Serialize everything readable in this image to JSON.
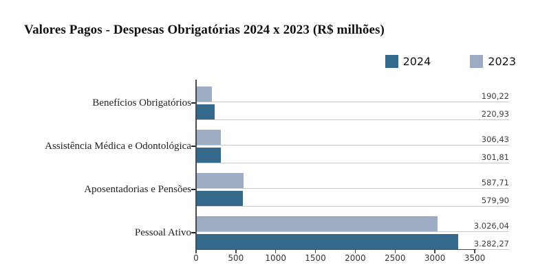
{
  "chart_data": {
    "type": "bar",
    "orientation": "horizontal",
    "title": "Valores Pagos - Despesas Obrigatórias 2024 x 2023 (R$ milhões)",
    "categories": [
      "Benefícios Obrigatórios",
      "Assistência Médica e Odontológica",
      "Aposentadorias e Pensões",
      "Pessoal Ativo"
    ],
    "series": [
      {
        "name": "2024",
        "color": "#34698c",
        "values": [
          220.93,
          301.81,
          579.9,
          3282.27
        ],
        "value_labels": [
          "220,93",
          "301,81",
          "579,90",
          "3.282,27"
        ]
      },
      {
        "name": "2023",
        "color": "#9dacc3",
        "values": [
          190.22,
          306.43,
          587.71,
          3026.04
        ],
        "value_labels": [
          "190,22",
          "306,43",
          "587,71",
          "3.026,04"
        ]
      }
    ],
    "bar_order_in_group_top_to_bottom": [
      "2023",
      "2024"
    ],
    "x_axis": {
      "min": 0,
      "max": 3500,
      "tick_labels": [
        "0",
        "500",
        "1000",
        "1500",
        "2000",
        "2500",
        "3000",
        "3500"
      ]
    },
    "legend_position": "top-right",
    "grid": "horizontal baseline under each bar, extending right to the value labels"
  }
}
